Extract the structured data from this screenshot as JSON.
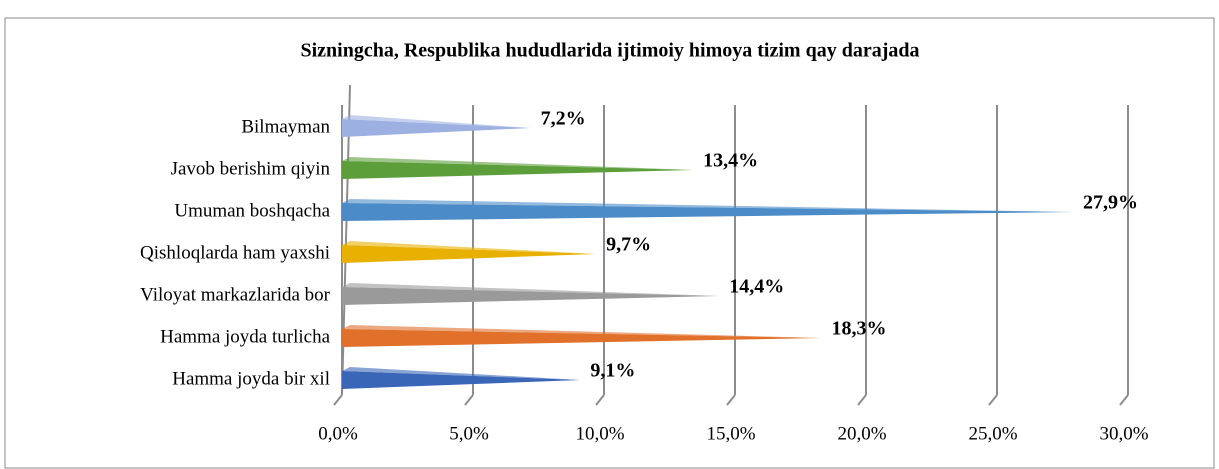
{
  "chart_data": {
    "type": "bar",
    "orientation": "horizontal",
    "title": "Sizningcha, Respublika hududlarida ijtimoiy himoya tizim qay darajada",
    "categories": [
      "Hamma joyda bir xil",
      "Hamma joyda turlicha",
      "Viloyat markazlarida bor",
      "Qishloqlarda ham yaxshi",
      "Umuman boshqacha",
      "Javob berishim qiyin",
      "Bilmayman"
    ],
    "values": [
      9.1,
      18.3,
      14.4,
      9.7,
      27.9,
      13.4,
      7.2
    ],
    "value_labels": [
      "9,1%",
      "18,3%",
      "14,4%",
      "9,7%",
      "27,9%",
      "13,4%",
      "7,2%"
    ],
    "colors": [
      "#3a66b8",
      "#e0702a",
      "#9a9a9a",
      "#e8b000",
      "#4a8bc8",
      "#5c9e3a",
      "#9cb0e2"
    ],
    "xlim": [
      0,
      30
    ],
    "xticks": [
      {
        "value": 0,
        "label": "0,0%"
      },
      {
        "value": 5,
        "label": "5,0%"
      },
      {
        "value": 10,
        "label": "10,0%"
      },
      {
        "value": 15,
        "label": "15,0%"
      },
      {
        "value": 20,
        "label": "20,0%"
      },
      {
        "value": 25,
        "label": "25,0%"
      },
      {
        "value": 30,
        "label": "30,0%"
      }
    ],
    "grid": true
  }
}
